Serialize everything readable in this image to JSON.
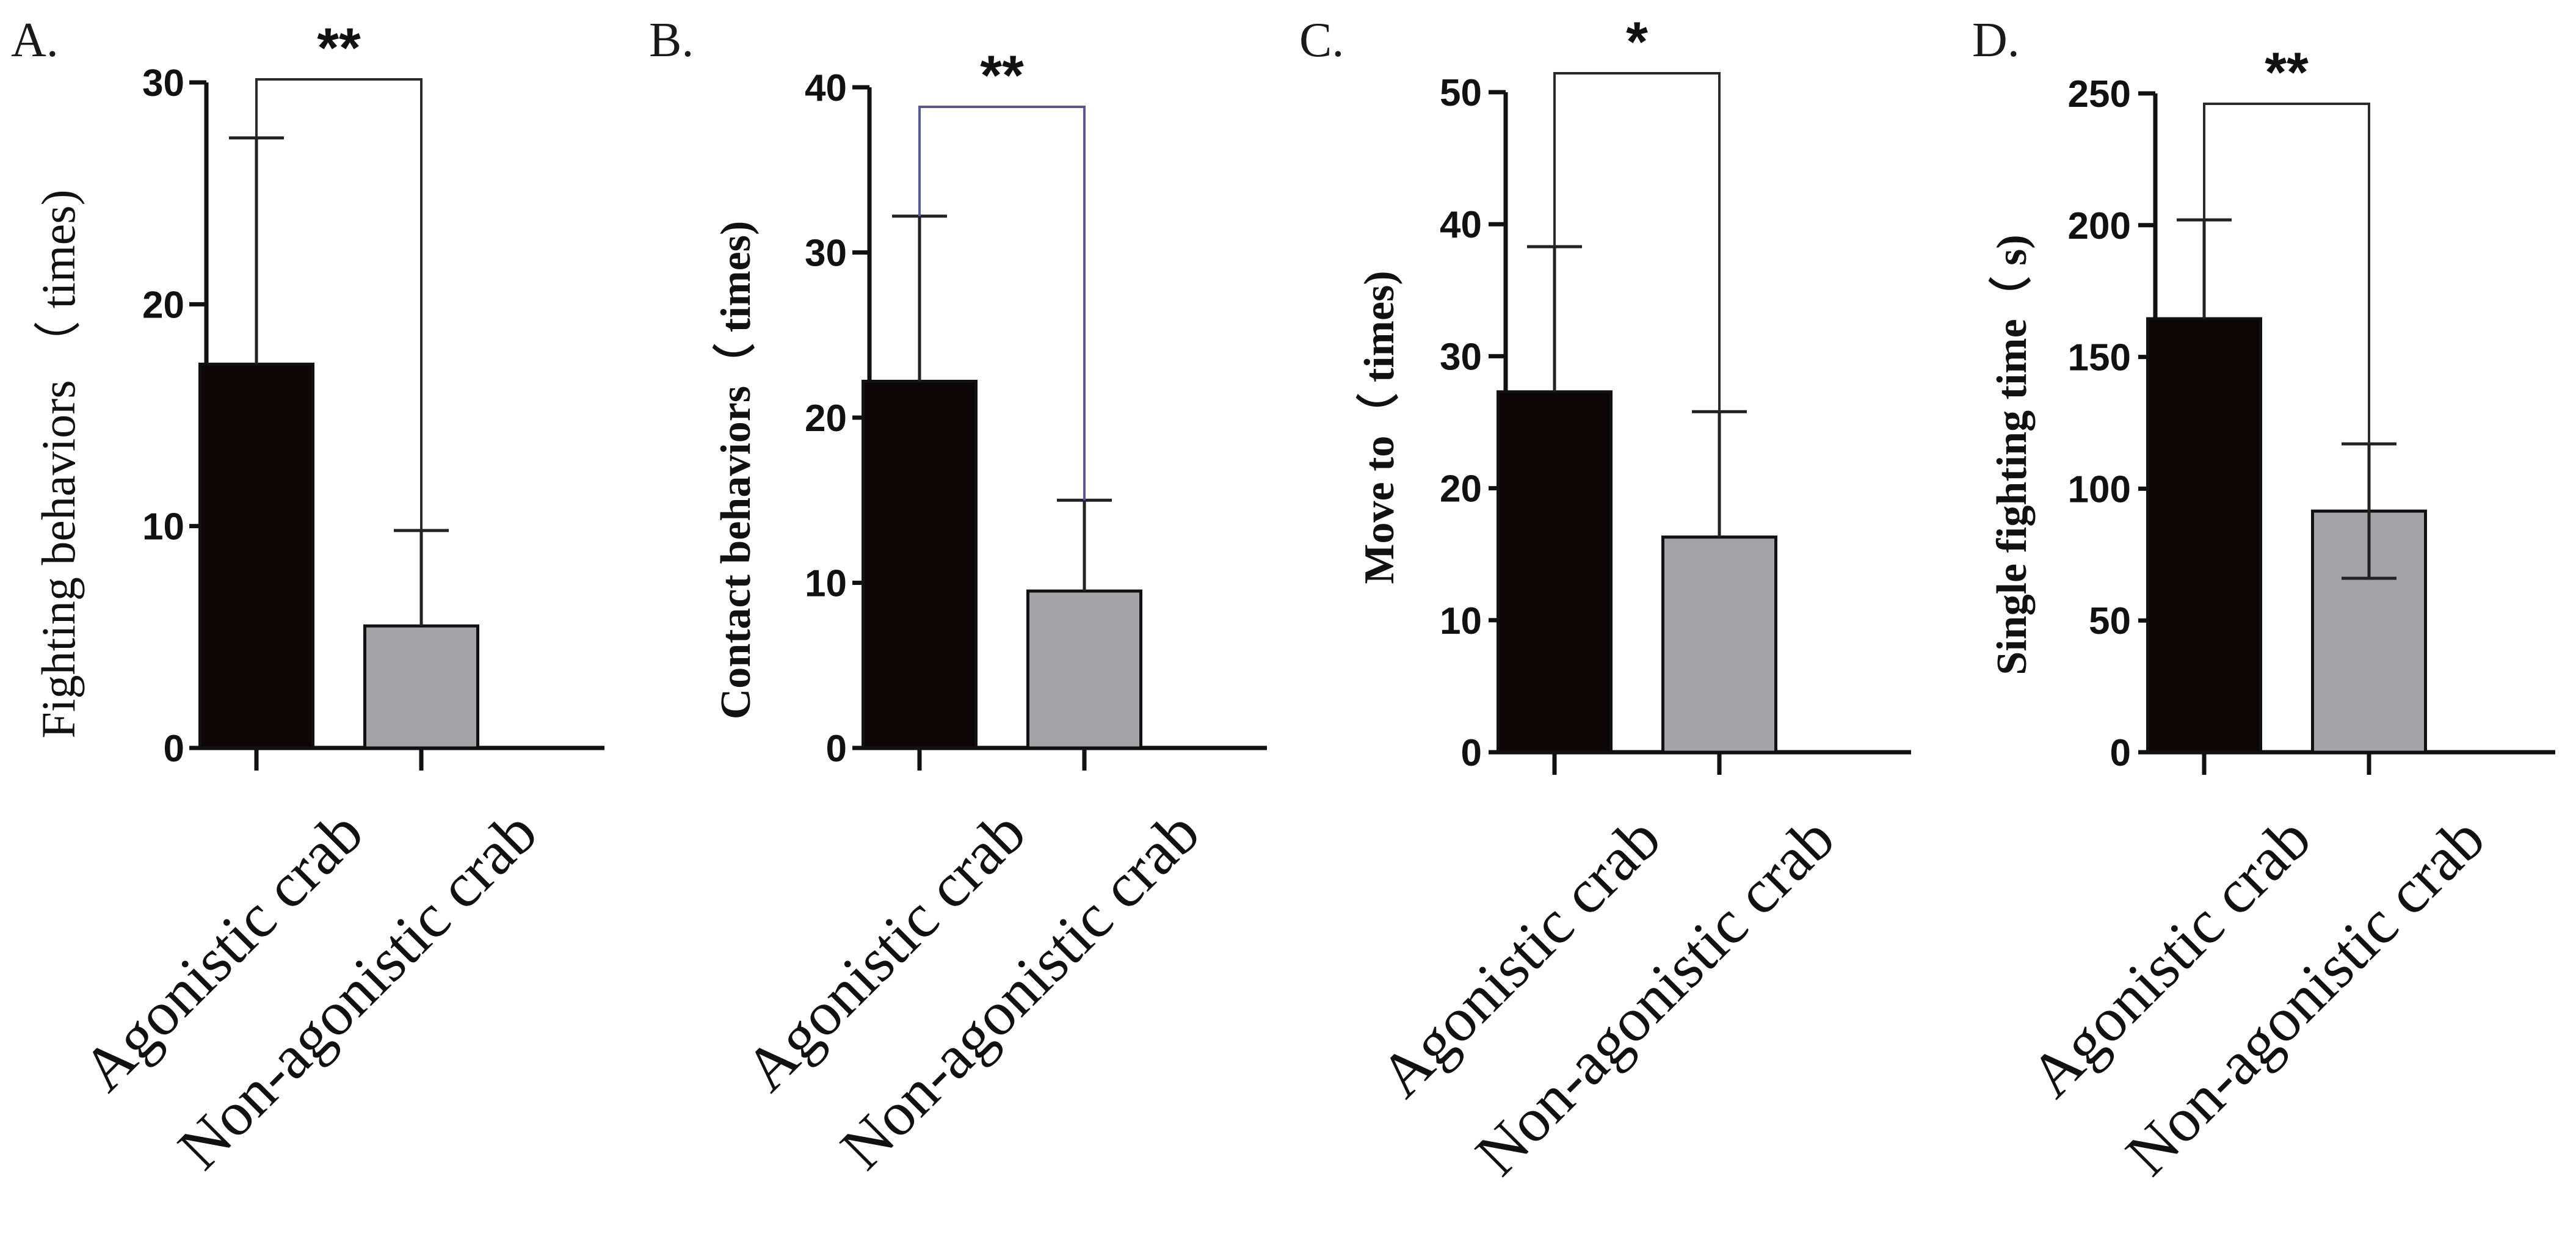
{
  "colors": {
    "agonistic": "#0d0606",
    "non_agonistic": "#a4a3a8",
    "axis": "#111111",
    "bracket_default": "#2a2a2a",
    "bracket_b": "#5a5890"
  },
  "chart_data": [
    {
      "type": "bar",
      "panel": "A.",
      "title": "",
      "xlabel": "",
      "ylabel": "Fighting behaviors （ times)",
      "categories": [
        "Agonistic crab",
        "Non-agonistic crab"
      ],
      "values": [
        17.3,
        5.5
      ],
      "error_upper": [
        27.5,
        9.8
      ],
      "ylim": [
        0,
        30
      ],
      "yticks": [
        0,
        10,
        20,
        30
      ],
      "significance": "**"
    },
    {
      "type": "bar",
      "panel": "B.",
      "title": "",
      "xlabel": "",
      "ylabel": "Contact behaviors（ times)",
      "categories": [
        "Agonistic crab",
        "Non-agonistic crab"
      ],
      "values": [
        22.2,
        9.5
      ],
      "error_upper": [
        32.2,
        15.0
      ],
      "ylim": [
        0,
        40
      ],
      "yticks": [
        0,
        10,
        20,
        30,
        40
      ],
      "significance": "**"
    },
    {
      "type": "bar",
      "panel": "C.",
      "title": "",
      "xlabel": "",
      "ylabel": "Move to（ times)",
      "categories": [
        "Agonistic crab",
        "Non-agonistic crab"
      ],
      "values": [
        27.3,
        16.3
      ],
      "error_upper": [
        38.3,
        25.8
      ],
      "ylim": [
        0,
        50
      ],
      "yticks": [
        0,
        10,
        20,
        30,
        40,
        50
      ],
      "significance": "*"
    },
    {
      "type": "bar",
      "panel": "D.",
      "title": "",
      "xlabel": "",
      "ylabel": "Single fighting time（ s)",
      "categories": [
        "Agonistic crab",
        "Non-agonistic crab"
      ],
      "values": [
        164.5,
        91.5
      ],
      "error_upper": [
        202.0,
        117.0
      ],
      "error_lower": [
        null,
        66.0
      ],
      "ylim": [
        0,
        250
      ],
      "yticks": [
        0,
        50,
        100,
        150,
        200,
        250
      ],
      "significance": "**"
    }
  ]
}
